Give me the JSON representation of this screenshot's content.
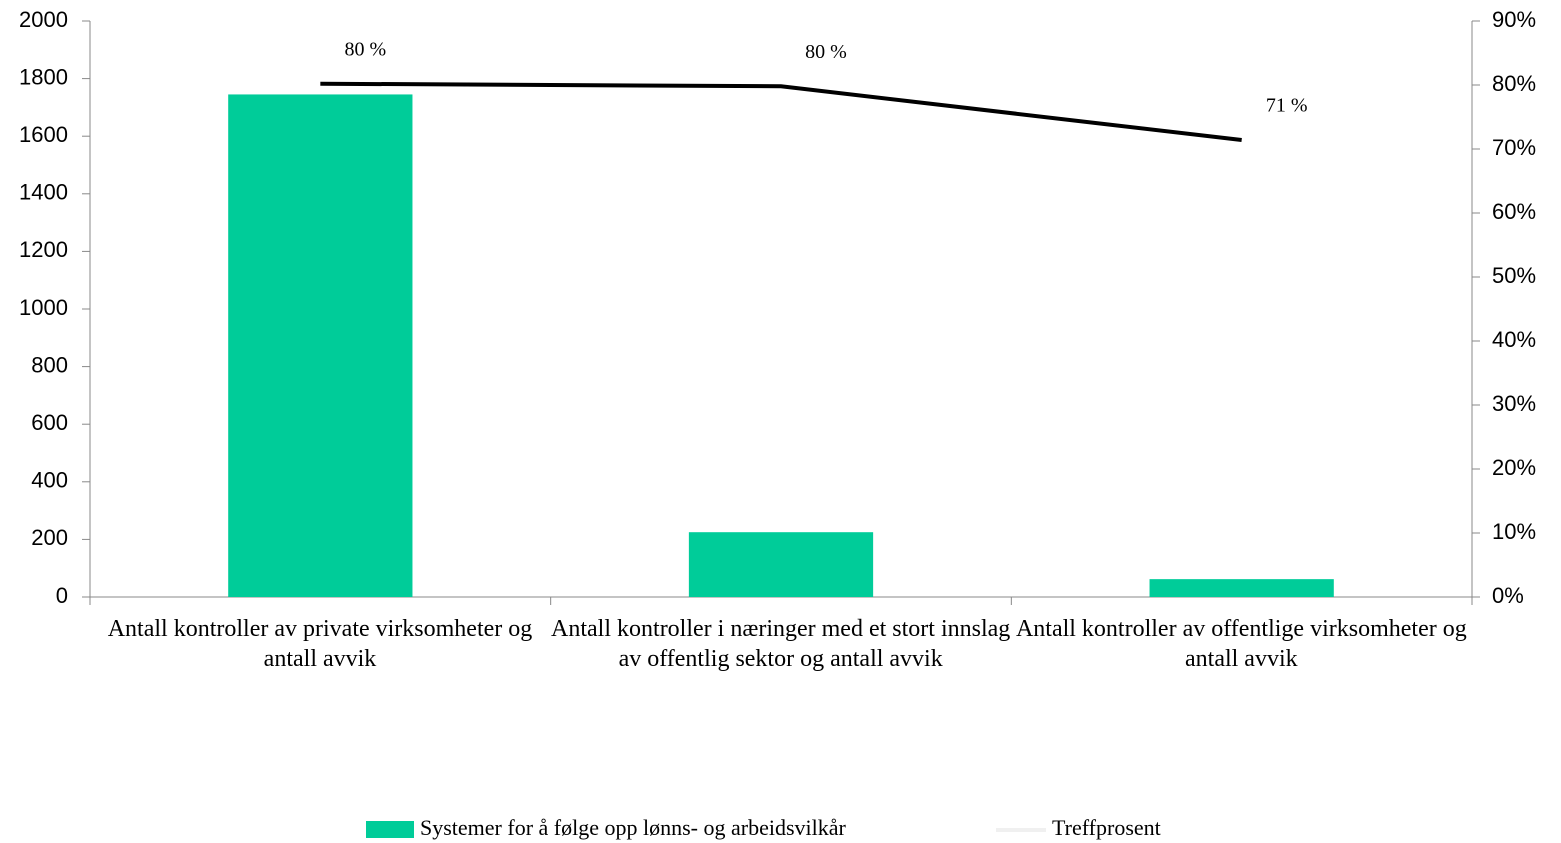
{
  "chart_data": {
    "type": "bar_line",
    "categories": [
      "Antall kontroller av private virksomheter og antall avvik",
      "Antall kontroller i næringer  med et stort innslag av offentlig sektor og antall avvik",
      "Antall kontroller av offentlige virksomheter og antall avvik"
    ],
    "series": [
      {
        "name": "Systemer for å følge opp lønns- og arbeidsvilkår",
        "type": "bar",
        "color": "#00cc99",
        "axis": "y",
        "values": [
          1745,
          225,
          62
        ]
      },
      {
        "name": "Treffprosent",
        "type": "line",
        "color": "#000000",
        "axis": "y2",
        "values": [
          80.2,
          79.8,
          71.4
        ],
        "value_labels": [
          "80 %",
          "80 %",
          "71 %"
        ]
      }
    ],
    "ylim": [
      0,
      2000
    ],
    "yticks": [
      0,
      200,
      400,
      600,
      800,
      1000,
      1200,
      1400,
      1600,
      1800,
      2000
    ],
    "y2lim": [
      0,
      90
    ],
    "y2ticks": [
      {
        "value": 0,
        "label": "0%"
      },
      {
        "value": 10,
        "label": "10%"
      },
      {
        "value": 20,
        "label": "20%"
      },
      {
        "value": 30,
        "label": "30%"
      },
      {
        "value": 40,
        "label": "40%"
      },
      {
        "value": 50,
        "label": "50%"
      },
      {
        "value": 60,
        "label": "60%"
      },
      {
        "value": 70,
        "label": "70%"
      },
      {
        "value": 80,
        "label": "80%"
      },
      {
        "value": 90,
        "label": "90%"
      }
    ],
    "legend": "bottom"
  }
}
